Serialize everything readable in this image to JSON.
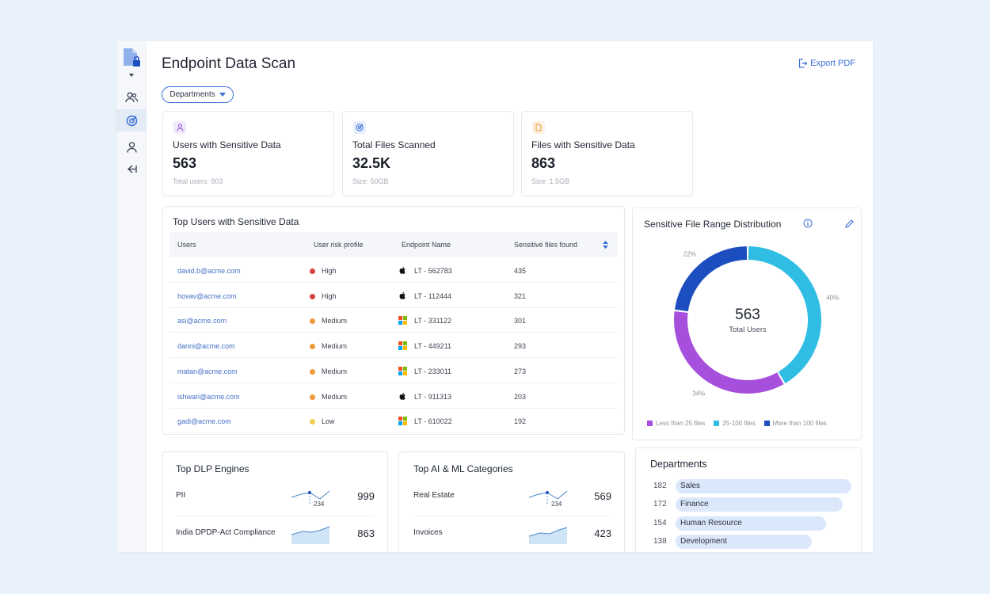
{
  "header": {
    "title": "Endpoint Data Scan",
    "export_label": "Export PDF",
    "filter_label": "Departments"
  },
  "stats": [
    {
      "label": "Users with Sensitive Data",
      "value": "563",
      "sub": "Total users: 803",
      "icon": "user-icon"
    },
    {
      "label": "Total Files Scanned",
      "value": "32.5K",
      "sub": "Size: 50GB",
      "icon": "radar-icon"
    },
    {
      "label": "Files with Sensitive Data",
      "value": "863",
      "sub": "Size: 1.5GB",
      "icon": "file-icon"
    }
  ],
  "users_table": {
    "title": "Top Users with Sensitive Data",
    "columns": [
      "Users",
      "User risk profile",
      "Endpoint Name",
      "Sensitive files found"
    ],
    "rows": [
      {
        "user": "david.b@acme.com",
        "risk": "High",
        "os": "apple",
        "endpoint": "LT - 562783",
        "files": "435"
      },
      {
        "user": "hovav@acme.com",
        "risk": "High",
        "os": "apple",
        "endpoint": "LT - 112444",
        "files": "321"
      },
      {
        "user": "asi@acme.com",
        "risk": "Medium",
        "os": "windows",
        "endpoint": "LT - 331122",
        "files": "301"
      },
      {
        "user": "danni@acme.com",
        "risk": "Medium",
        "os": "windows",
        "endpoint": "LT - 449211",
        "files": "293"
      },
      {
        "user": "matan@acme.com",
        "risk": "Medium",
        "os": "windows",
        "endpoint": "LT - 233011",
        "files": "273"
      },
      {
        "user": "ishwari@acme.com",
        "risk": "Medium",
        "os": "apple",
        "endpoint": "LT - 911313",
        "files": "203"
      },
      {
        "user": "gadi@acme.com",
        "risk": "Low",
        "os": "windows",
        "endpoint": "LT - 610022",
        "files": "192"
      }
    ],
    "risk_colors": {
      "High": "#d94040",
      "Medium": "#ef9a38",
      "Low": "#f3cd4e"
    }
  },
  "distribution": {
    "title": "Sensitive File Range Distribution",
    "center_value": "563",
    "center_label": "Total Users"
  },
  "chart_data": {
    "type": "pie",
    "title": "Sensitive File Range Distribution",
    "categories": [
      "Less than 25 files",
      "25-100 files",
      "More than 100 files"
    ],
    "values": [
      34,
      40,
      22
    ],
    "labels": [
      "34%",
      "40%",
      "22%"
    ],
    "colors": [
      "#a64fdc",
      "#2fbde3",
      "#1d4ebf"
    ]
  },
  "dlp": {
    "title": "Top DLP Engines",
    "rows": [
      {
        "name": "PII",
        "value": "999",
        "marker": "234"
      },
      {
        "name": "India DPDP-Act Compliance",
        "value": "863"
      }
    ]
  },
  "ai": {
    "title": "Top AI & ML Categories",
    "rows": [
      {
        "name": "Real Estate",
        "value": "569",
        "marker": "234"
      },
      {
        "name": "Invoices",
        "value": "423"
      }
    ]
  },
  "departments": {
    "title": "Departments",
    "items": [
      {
        "count": "182",
        "name": "Sales",
        "value": 182
      },
      {
        "count": "172",
        "name": "Finance",
        "value": 172
      },
      {
        "count": "154",
        "name": "Human Resource",
        "value": 154
      },
      {
        "count": "138",
        "name": "Development",
        "value": 138
      }
    ]
  },
  "colors": {
    "accent": "#3b6fd8",
    "link": "#4571c8"
  }
}
